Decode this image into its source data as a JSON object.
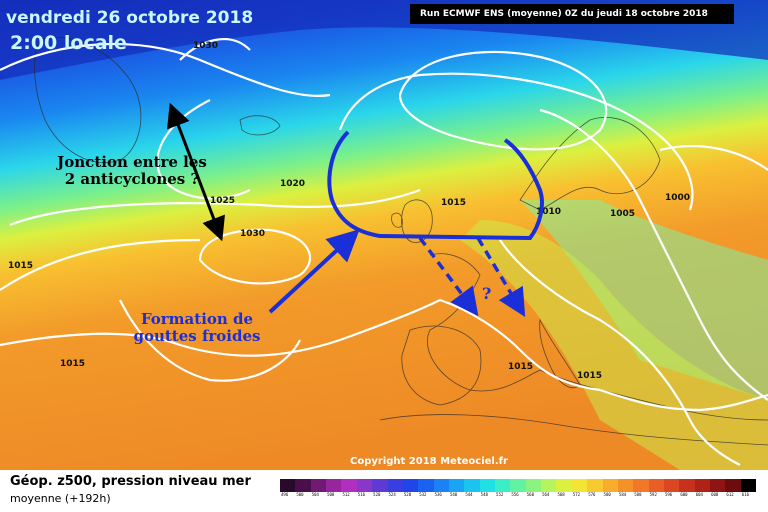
{
  "header": {
    "date": "vendredi 26 octobre 2018",
    "time": "2:00 locale",
    "run_info": "Run ECMWF ENS (moyenne) 0Z du jeudi 18 octobre 2018"
  },
  "annotations": {
    "junction": "Jonction entre les 2 anticyclones ?",
    "formation": "Formation de gouttes froides",
    "question_mark": "?"
  },
  "isobar_labels": [
    "1030",
    "1025",
    "1030",
    "1020",
    "1015",
    "1015",
    "1010",
    "1005",
    "1000",
    "1015",
    "1015",
    "1015"
  ],
  "copyright": "Copyright 2018 Meteociel.fr",
  "footer": {
    "title": "Géop. z500, pression niveau mer",
    "subtitle": "moyenne  (+192h)"
  },
  "legend": {
    "values": [
      "496",
      "500",
      "504",
      "508",
      "512",
      "516",
      "520",
      "524",
      "528",
      "532",
      "536",
      "540",
      "544",
      "548",
      "552",
      "556",
      "560",
      "564",
      "568",
      "572",
      "576",
      "580",
      "584",
      "588",
      "592",
      "596",
      "600",
      "604",
      "608",
      "612",
      "616"
    ],
    "colors": [
      "#2a0a2a",
      "#4a0f4a",
      "#701a74",
      "#96259e",
      "#b12fbf",
      "#8a36c8",
      "#5d3ad4",
      "#3a3ee0",
      "#1f46e8",
      "#1a62f0",
      "#1a82f4",
      "#1aa4f4",
      "#1ac4ee",
      "#1fe0e4",
      "#3aeec8",
      "#62f2a4",
      "#8cf47e",
      "#b4f45c",
      "#dcf040",
      "#f4e434",
      "#f8ca30",
      "#f8ae2c",
      "#f49228",
      "#f07826",
      "#e85e24",
      "#dc4620",
      "#c8321c",
      "#ae2218",
      "#901414",
      "#6c0c0c",
      "#000000"
    ]
  }
}
